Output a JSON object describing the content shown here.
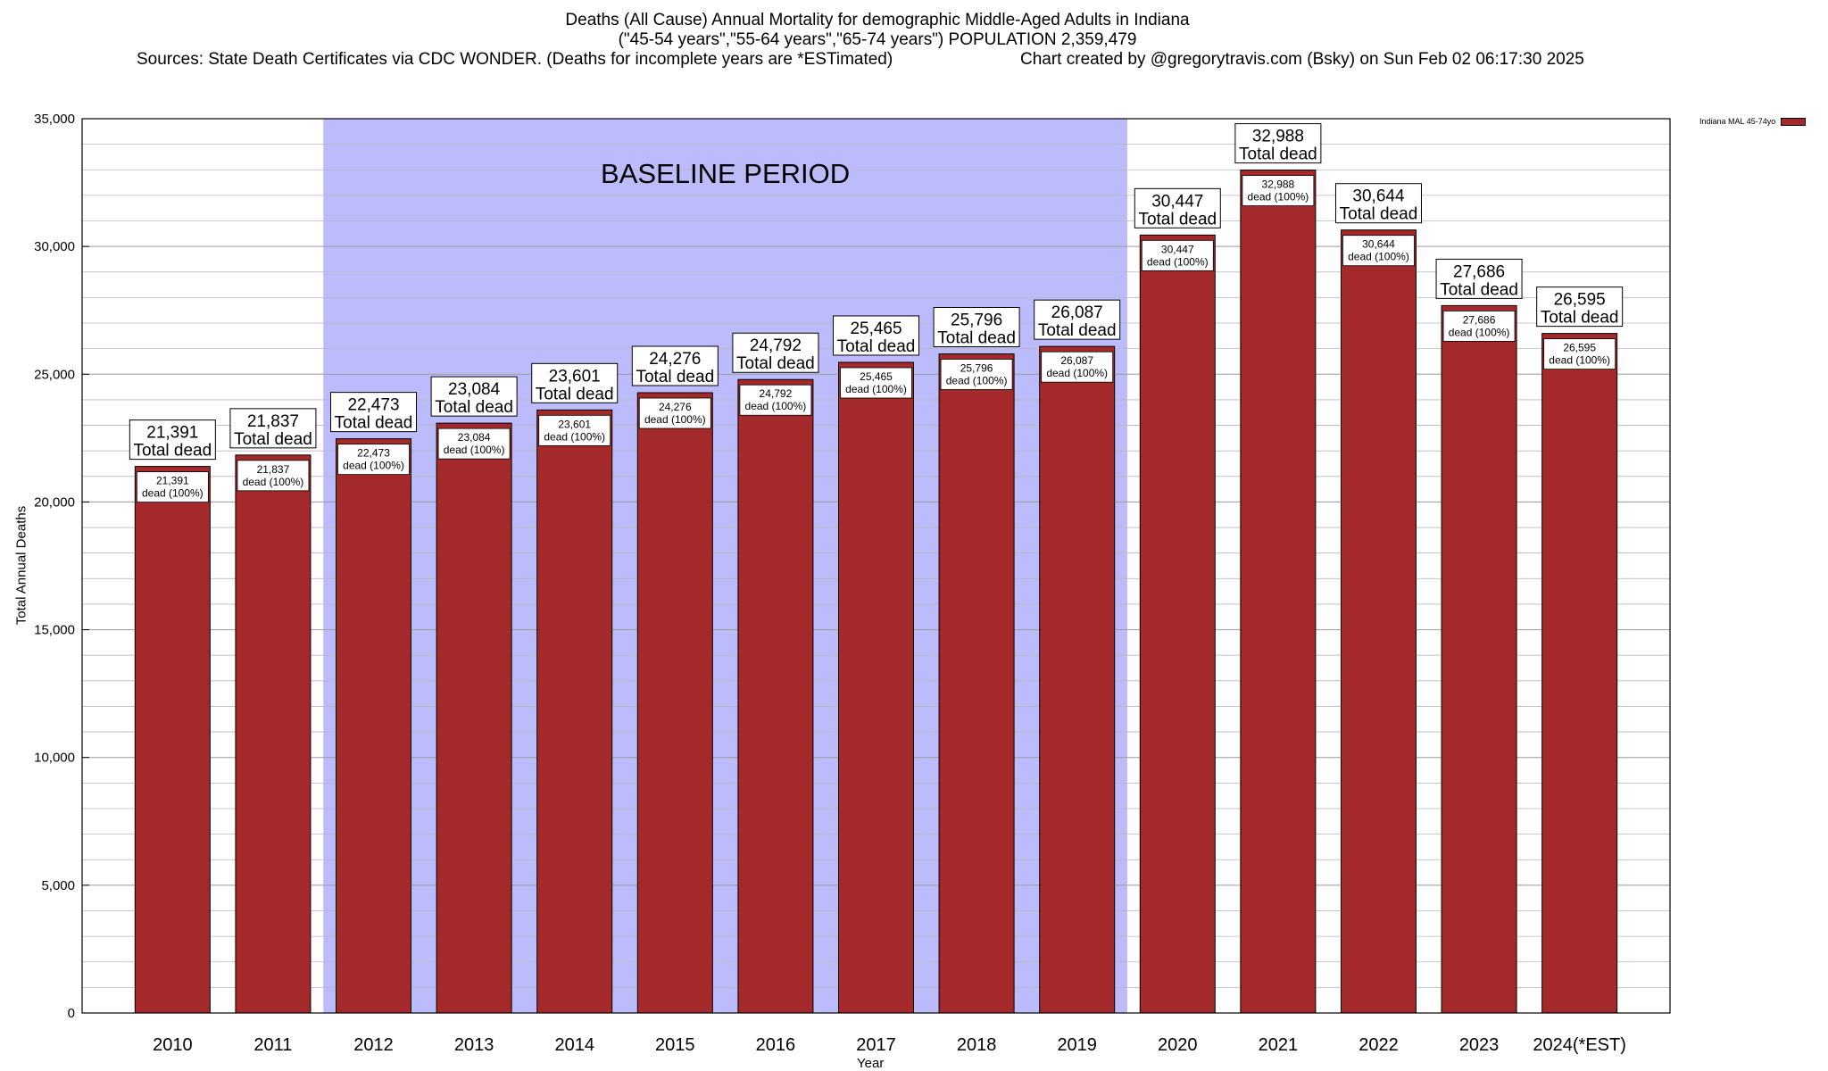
{
  "title": {
    "line1": "Deaths (All Cause) Annual Mortality for demographic Middle-Aged Adults in Indiana",
    "line2": "(\"45-54 years\",\"55-64 years\",\"65-74 years\") POPULATION 2,359,479",
    "line3_left": "Sources: State Death Certificates via CDC WONDER. (Deaths for incomplete years are *ESTimated)",
    "line3_right": "Chart created by @gregorytravis.com (Bsky) on Sun Feb 02 06:17:30 2025"
  },
  "chart_data": {
    "type": "bar",
    "title": "Deaths (All Cause) Annual Mortality for demographic Middle-Aged Adults in Indiana",
    "xlabel": "Year",
    "ylabel": "Total Annual Deaths",
    "ylim": [
      0,
      35000
    ],
    "y_ticks": [
      0,
      5000,
      10000,
      15000,
      20000,
      25000,
      30000,
      35000
    ],
    "y_tick_labels": [
      "0",
      "5,000",
      "10,000",
      "15,000",
      "20,000",
      "25,000",
      "30,000",
      "35,000"
    ],
    "categories": [
      "2010",
      "2011",
      "2012",
      "2013",
      "2014",
      "2015",
      "2016",
      "2017",
      "2018",
      "2019",
      "2020",
      "2021",
      "2022",
      "2023",
      "2024(*EST)"
    ],
    "series": [
      {
        "name": "Indiana MAL 45-74yo",
        "color": "#a3292a",
        "values": [
          21391,
          21837,
          22473,
          23084,
          23601,
          24276,
          24792,
          25465,
          25796,
          26087,
          30447,
          32988,
          30644,
          27686,
          26595
        ]
      }
    ],
    "value_labels": [
      "21,391",
      "21,837",
      "22,473",
      "23,084",
      "23,601",
      "24,276",
      "24,792",
      "25,465",
      "25,796",
      "26,087",
      "30,447",
      "32,988",
      "30,644",
      "27,686",
      "26,595"
    ],
    "top_label_suffix": "Total dead",
    "inner_label_suffix": "dead (100%)",
    "baseline_period": {
      "label": "BASELINE PERIOD",
      "from_category": "2012",
      "to_category": "2019",
      "color": "#bcbcfc"
    },
    "grid": true,
    "legend_position": "top-right"
  }
}
